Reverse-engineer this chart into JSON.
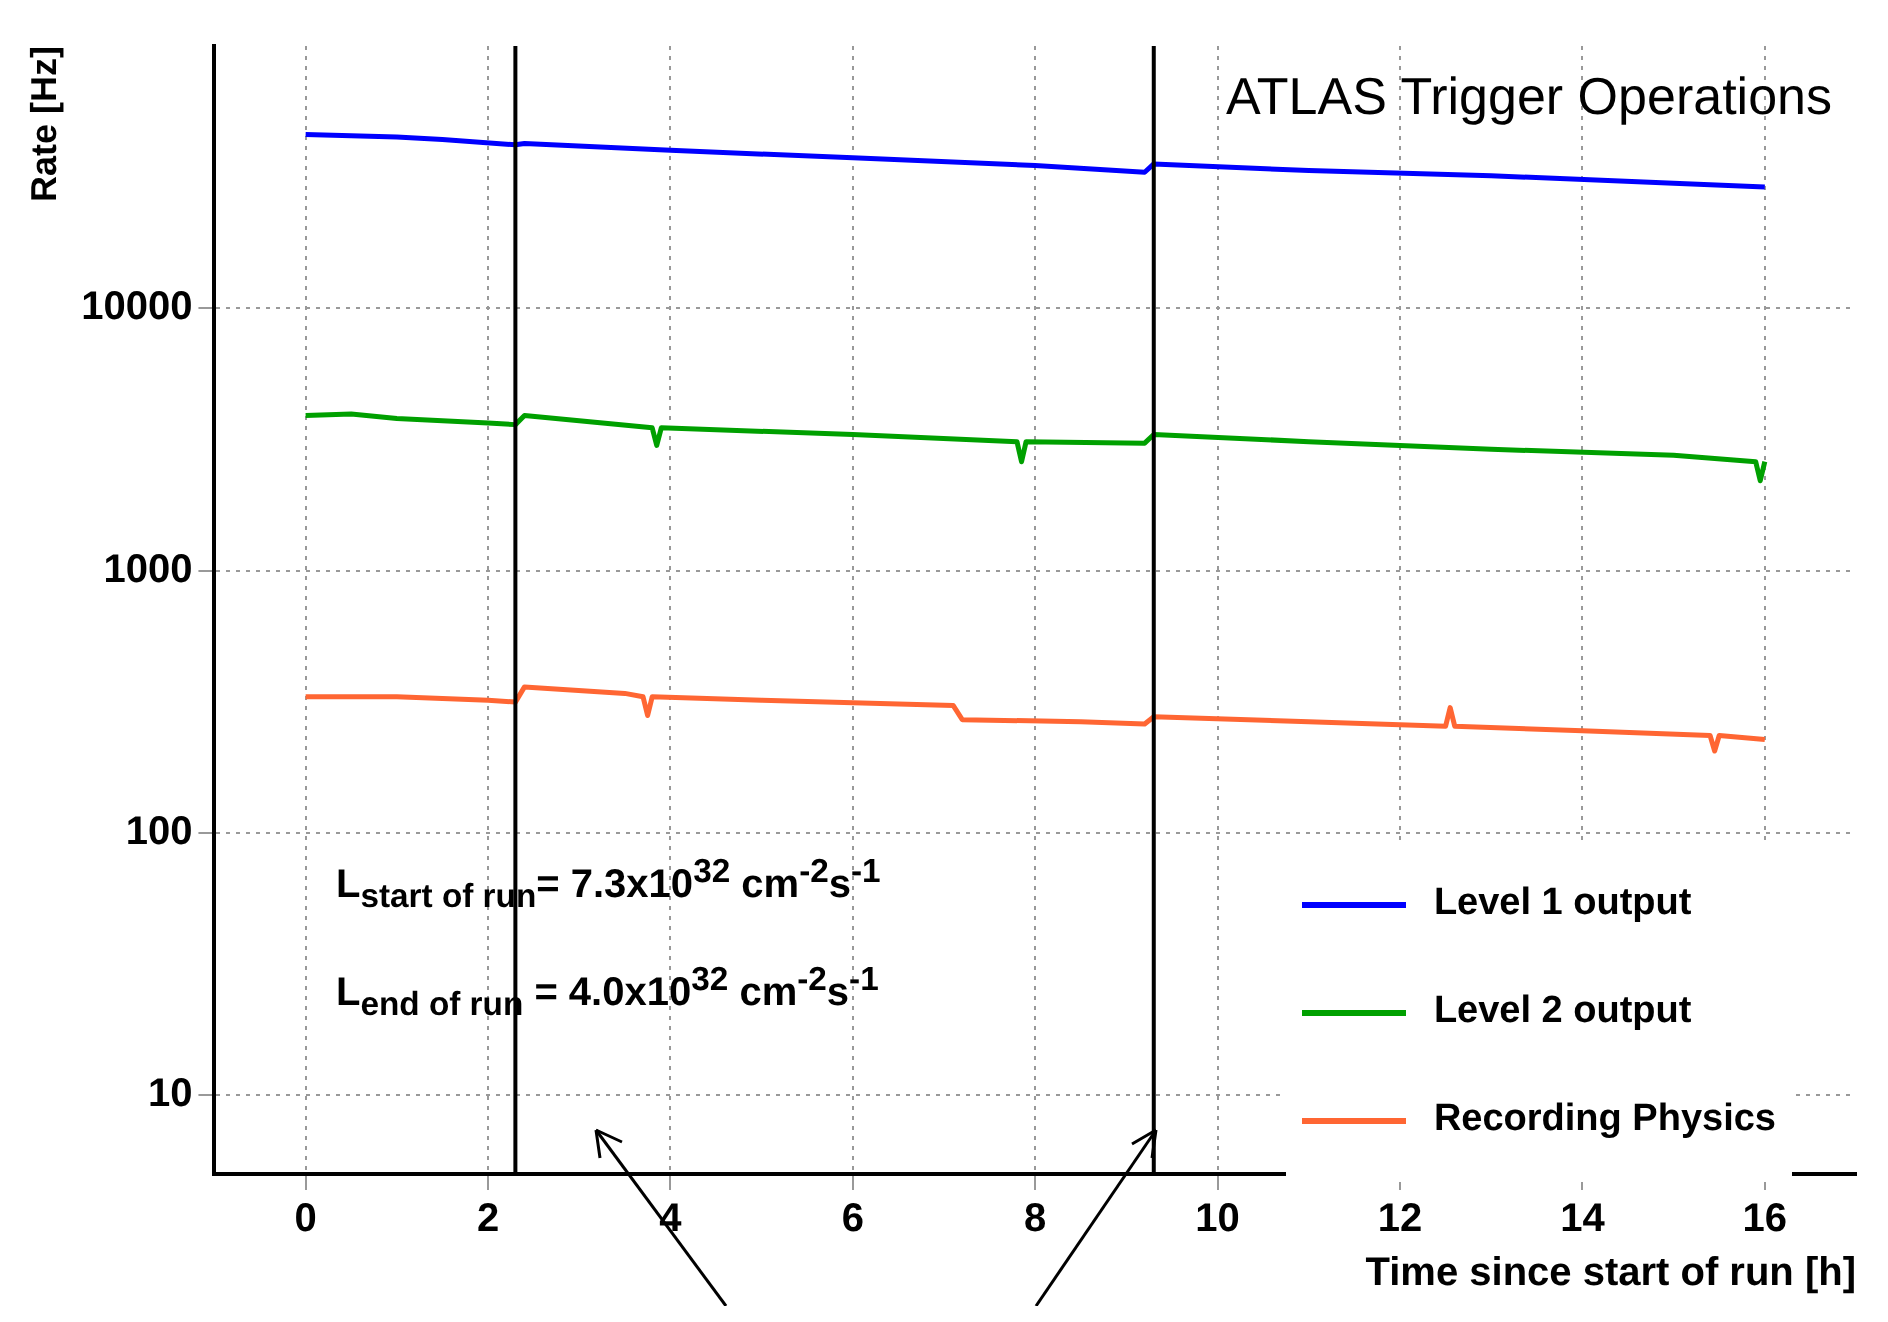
{
  "chart_data": {
    "type": "line",
    "title": "ATLAS Trigger Operations",
    "xlabel": "Time since start of run [h]",
    "ylabel": "Rate [Hz]",
    "log": "y",
    "grid": true,
    "legend": "bottom right",
    "marker": "none",
    "line_style": "solid",
    "xlim": [
      -1,
      17
    ],
    "xticks": [
      0,
      2,
      4,
      6,
      8,
      10,
      12,
      14,
      16
    ],
    "ylim": [
      5,
      100000
    ],
    "yticks": [
      10,
      100,
      1000,
      10000
    ],
    "series": [
      {
        "name": "Level 1 output",
        "color": "#0000ff",
        "x": [
          0,
          0.5,
          1,
          1.5,
          2.3,
          2.4,
          4,
          6,
          8,
          9.2,
          9.3,
          11,
          13,
          15,
          16
        ],
        "values": [
          46000,
          45500,
          45000,
          44000,
          42000,
          42500,
          40000,
          37500,
          35000,
          33000,
          35500,
          33500,
          32000,
          30000,
          29000
        ]
      },
      {
        "name": "Level 2 output",
        "color": "#00a000",
        "x": [
          0,
          0.5,
          1,
          2,
          2.3,
          2.4,
          3.8,
          3.85,
          3.9,
          6,
          7.8,
          7.85,
          7.9,
          9.2,
          9.3,
          11,
          13,
          15,
          15.9,
          15.95,
          16
        ],
        "values": [
          3900,
          3950,
          3800,
          3650,
          3600,
          3900,
          3500,
          3000,
          3500,
          3300,
          3100,
          2600,
          3100,
          3060,
          3300,
          3100,
          2900,
          2750,
          2600,
          2200,
          2600
        ]
      },
      {
        "name": "Recording Physics",
        "color": "#ff6633",
        "x": [
          0,
          1,
          2,
          2.3,
          2.4,
          3.5,
          3.7,
          3.75,
          3.8,
          5,
          7.1,
          7.2,
          8.5,
          9.2,
          9.3,
          11,
          12.5,
          12.55,
          12.6,
          14,
          15.4,
          15.45,
          15.5,
          16
        ],
        "values": [
          330,
          330,
          320,
          315,
          360,
          340,
          330,
          280,
          330,
          320,
          306,
          270,
          265,
          260,
          277,
          265,
          255,
          300,
          255,
          245,
          235,
          205,
          235,
          227
        ]
      }
    ],
    "ref_lines": [
      {
        "axis": "x",
        "value": 2.3,
        "color": "#000000"
      },
      {
        "axis": "x",
        "value": 9.3,
        "color": "#000000"
      }
    ],
    "annotations": [
      "L$_{start of run}$= 7.3x10$^{32}$ cm$^{-2}$s$^{-1}$",
      "L$_{end of run}$ = 4.0x10$^{32}$ cm$^{-2}$s$^{-1}$"
    ]
  }
}
